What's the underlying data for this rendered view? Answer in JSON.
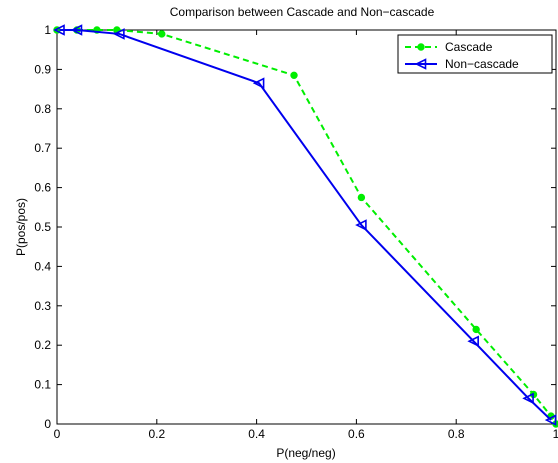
{
  "chart_data": {
    "type": "line",
    "title": "Comparison between Cascade and Non−cascade",
    "xlabel": "P(neg/neg)",
    "ylabel": "P(pos/pos)",
    "xlim": [
      0,
      1
    ],
    "ylim": [
      0,
      1
    ],
    "xticks": [
      0,
      0.2,
      0.4,
      0.6,
      0.8,
      1
    ],
    "xtick_labels": [
      "0",
      "0.2",
      "0.4",
      "0.6",
      "0.8",
      "1"
    ],
    "yticks": [
      0,
      0.1,
      0.2,
      0.3,
      0.4,
      0.5,
      0.6,
      0.7,
      0.8,
      0.9,
      1
    ],
    "ytick_labels": [
      "0",
      "0.1",
      "0.2",
      "0.3",
      "0.4",
      "0.5",
      "0.6",
      "0.7",
      "0.8",
      "0.9",
      "1"
    ],
    "grid": false,
    "legend_position": "top-right",
    "series": [
      {
        "name": "Cascade",
        "color": "#00ee00",
        "line_style": "dashed",
        "marker": "dot",
        "x": [
          0.0,
          0.04,
          0.08,
          0.12,
          0.21,
          0.475,
          0.61,
          0.84,
          0.955,
          0.99,
          1.0
        ],
        "y": [
          1.0,
          1.0,
          1.0,
          1.0,
          0.99,
          0.885,
          0.575,
          0.24,
          0.075,
          0.02,
          0.0
        ]
      },
      {
        "name": "Non−cascade",
        "color": "#0000ee",
        "line_style": "solid",
        "marker": "triangle-left",
        "x": [
          0.005,
          0.04,
          0.125,
          0.405,
          0.61,
          0.835,
          0.945,
          0.99
        ],
        "y": [
          1.0,
          1.0,
          0.99,
          0.865,
          0.505,
          0.21,
          0.065,
          0.01
        ]
      }
    ]
  }
}
